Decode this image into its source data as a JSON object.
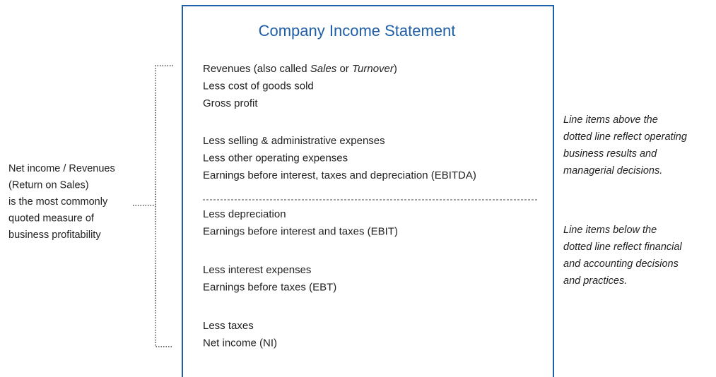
{
  "title": "Company Income Statement",
  "statement": {
    "groups": [
      {
        "lines": [
          {
            "parts": [
              {
                "text": "Revenues (also called "
              },
              {
                "text": "Sales",
                "italic": true
              },
              {
                "text": " or "
              },
              {
                "text": "Turnover",
                "italic": true
              },
              {
                "text": ")"
              }
            ]
          },
          {
            "parts": [
              {
                "text": "Less cost of goods sold"
              }
            ]
          },
          {
            "parts": [
              {
                "text": "Gross profit"
              }
            ]
          }
        ]
      },
      {
        "lines": [
          {
            "parts": [
              {
                "text": "Less selling & administrative expenses"
              }
            ]
          },
          {
            "parts": [
              {
                "text": "Less other operating expenses"
              }
            ]
          },
          {
            "parts": [
              {
                "text": "Earnings before interest, taxes and depreciation (EBITDA)"
              }
            ]
          }
        ]
      },
      {
        "lines": [
          {
            "parts": [
              {
                "text": "Less depreciation"
              }
            ]
          },
          {
            "parts": [
              {
                "text": "Earnings before interest and taxes (EBIT)"
              }
            ]
          }
        ]
      },
      {
        "lines": [
          {
            "parts": [
              {
                "text": "Less interest expenses"
              }
            ]
          },
          {
            "parts": [
              {
                "text": "Earnings before taxes (EBT)"
              }
            ]
          }
        ]
      },
      {
        "lines": [
          {
            "parts": [
              {
                "text": "Less taxes"
              }
            ]
          },
          {
            "parts": [
              {
                "text": "Net income (NI)"
              }
            ]
          }
        ]
      }
    ]
  },
  "left_note": {
    "lines": [
      "Net income / Revenues",
      "(Return on Sales)",
      "is the most commonly",
      "quoted measure of",
      "business profitability"
    ]
  },
  "right_notes": [
    {
      "lines": [
        "Line items above the",
        "dotted line reflect operating",
        "business results and",
        "managerial decisions."
      ]
    },
    {
      "lines": [
        "Line items below the",
        "dotted line reflect financial",
        "and accounting decisions",
        "and practices."
      ]
    }
  ]
}
